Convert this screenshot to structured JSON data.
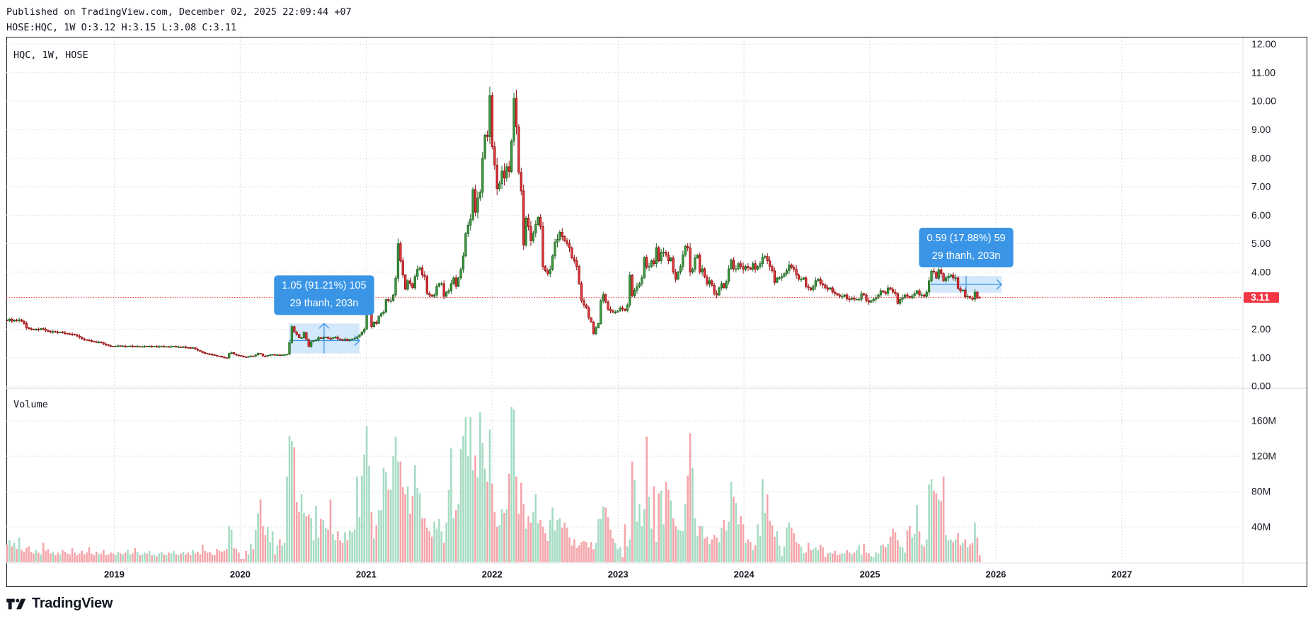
{
  "header": {
    "published": "Published on TradingView.com, December 02, 2025 22:09:44 +07",
    "ohlc": "HOSE:HQC, 1W O:3.12 H:3.15 L:3.08 C:3.11"
  },
  "legend": {
    "main": "HQC, 1W, HOSE",
    "volume": "Volume"
  },
  "footer": {
    "brand": "TradingView"
  },
  "colors": {
    "up": "#3d9a40",
    "up_border": "#1e5f20",
    "down": "#e0383e",
    "down_border": "#8c0a0a",
    "vol_up": "#a6dcc3",
    "vol_down": "#f5a5aa",
    "last_price": "#f23645",
    "measure": "#3a95e6",
    "measure_fill": "#cfe5fb",
    "grid": "#d1d4dc"
  },
  "chart_data": {
    "type": "candlestick",
    "title": "HQC, 1W, HOSE",
    "interval": "1W",
    "x_start_year": 2018.149,
    "bars_per_year": 52.18,
    "ylim": [
      0,
      12
    ],
    "grid": true,
    "price_ticks": [
      {
        "value": 12,
        "label": "12.00"
      },
      {
        "value": 11,
        "label": "11.00"
      },
      {
        "value": 10,
        "label": "10.00"
      },
      {
        "value": 9,
        "label": "9.00"
      },
      {
        "value": 8,
        "label": "8.00"
      },
      {
        "value": 7,
        "label": "7.00"
      },
      {
        "value": 6,
        "label": "6.00"
      },
      {
        "value": 5,
        "label": "5.00"
      },
      {
        "value": 4,
        "label": "4.00"
      },
      {
        "value": 2,
        "label": "2.00"
      },
      {
        "value": 1,
        "label": "1.00"
      },
      {
        "value": 0,
        "label": "0.00"
      }
    ],
    "volume_ticks": [
      {
        "value": 160,
        "label": "160M"
      },
      {
        "value": 120,
        "label": "120M"
      },
      {
        "value": 80,
        "label": "80M"
      },
      {
        "value": 40,
        "label": "40M"
      }
    ],
    "year_ticks": [
      {
        "value": 2019,
        "label": "2019"
      },
      {
        "value": 2020,
        "label": "2020"
      },
      {
        "value": 2021,
        "label": "2021"
      },
      {
        "value": 2022,
        "label": "2022"
      },
      {
        "value": 2023,
        "label": "2023"
      },
      {
        "value": 2024,
        "label": "2024"
      },
      {
        "value": 2025,
        "label": "2025"
      },
      {
        "value": 2026,
        "label": "2026"
      },
      {
        "value": 2027,
        "label": "2027"
      }
    ],
    "last_price": {
      "value": 3.11,
      "label": "3.11"
    },
    "last_bar": {
      "open": 3.12,
      "high": 3.15,
      "low": 3.08,
      "close": 3.11
    },
    "closes": [
      2.3,
      2.35,
      2.28,
      2.32,
      2.3,
      2.33,
      2.28,
      2.2,
      2.05,
      2.02,
      2.0,
      1.98,
      2.0,
      1.98,
      2.02,
      2.0,
      1.96,
      1.92,
      1.9,
      1.92,
      1.9,
      1.88,
      1.9,
      1.88,
      1.85,
      1.84,
      1.83,
      1.82,
      1.8,
      1.76,
      1.72,
      1.66,
      1.63,
      1.62,
      1.6,
      1.58,
      1.56,
      1.55,
      1.55,
      1.52,
      1.48,
      1.45,
      1.42,
      1.4,
      1.39,
      1.4,
      1.42,
      1.4,
      1.41,
      1.39,
      1.4,
      1.41,
      1.4,
      1.39,
      1.4,
      1.38,
      1.39,
      1.4,
      1.39,
      1.4,
      1.39,
      1.4,
      1.38,
      1.39,
      1.4,
      1.39,
      1.39,
      1.38,
      1.39,
      1.4,
      1.38,
      1.38,
      1.37,
      1.38,
      1.36,
      1.35,
      1.34,
      1.35,
      1.3,
      1.26,
      1.22,
      1.18,
      1.15,
      1.13,
      1.12,
      1.1,
      1.08,
      1.06,
      1.05,
      1.02,
      1.0,
      0.99,
      1.15,
      1.18,
      1.12,
      1.09,
      1.08,
      1.05,
      1.03,
      1.02,
      1.04,
      1.06,
      1.05,
      1.1,
      1.15,
      1.13,
      1.06,
      1.05,
      1.08,
      1.1,
      1.11,
      1.1,
      1.1,
      1.09,
      1.1,
      1.1,
      1.12,
      1.53,
      2.09,
      1.9,
      1.82,
      1.7,
      1.7,
      1.88,
      1.64,
      1.39,
      1.56,
      1.6,
      1.62,
      1.7,
      1.68,
      1.7,
      1.72,
      1.68,
      1.66,
      1.7,
      1.72,
      1.66,
      1.63,
      1.62,
      1.65,
      1.6,
      1.63,
      1.66,
      1.68,
      1.72,
      1.8,
      1.9,
      2.0,
      2.8,
      2.95,
      2.09,
      2.25,
      2.2,
      2.46,
      2.55,
      2.6,
      3.04,
      3.0,
      3.0,
      3.2,
      3.79,
      5.0,
      4.4,
      3.9,
      3.4,
      3.7,
      3.6,
      3.45,
      3.85,
      4.1,
      4.15,
      3.9,
      3.85,
      3.25,
      3.2,
      3.15,
      3.2,
      3.5,
      3.6,
      3.6,
      3.15,
      3.3,
      3.35,
      3.6,
      3.8,
      3.5,
      3.8,
      4.1,
      4.57,
      5.35,
      5.65,
      5.85,
      6.9,
      6.1,
      6.6,
      6.8,
      8.0,
      8.8,
      8.75,
      10.2,
      8.4,
      7.76,
      6.93,
      7.1,
      7.55,
      7.3,
      7.7,
      7.53,
      8.6,
      10.1,
      9.1,
      7.5,
      6.85,
      4.95,
      5.9,
      5.6,
      5.1,
      5.37,
      5.67,
      5.92,
      5.6,
      4.2,
      4.05,
      3.95,
      4.1,
      4.57,
      5.05,
      5.15,
      5.4,
      5.25,
      5.1,
      5.0,
      4.85,
      4.5,
      4.4,
      4.2,
      3.6,
      3.0,
      2.85,
      2.75,
      2.4,
      2.25,
      1.84,
      2.05,
      2.2,
      3.0,
      3.21,
      2.95,
      2.7,
      2.65,
      2.6,
      2.6,
      2.65,
      2.75,
      2.7,
      2.65,
      2.85,
      3.89,
      3.17,
      3.37,
      3.5,
      3.6,
      3.8,
      4.52,
      4.17,
      4.2,
      4.4,
      4.3,
      4.86,
      4.4,
      4.7,
      4.7,
      4.6,
      4.4,
      4.5,
      4.0,
      3.75,
      4.0,
      4.2,
      4.6,
      4.9,
      4.85,
      4.0,
      4.1,
      4.5,
      4.6,
      4.0,
      4.12,
      3.83,
      3.58,
      3.7,
      3.54,
      3.25,
      3.2,
      3.45,
      3.6,
      3.45,
      3.67,
      4.12,
      4.43,
      4.12,
      4.12,
      4.3,
      4.2,
      4.1,
      4.2,
      4.15,
      4.1,
      4.3,
      4.1,
      4.2,
      4.3,
      4.52,
      4.55,
      4.4,
      4.2,
      4.05,
      3.64,
      3.8,
      3.8,
      3.85,
      3.95,
      4.05,
      4.25,
      4.16,
      4.1,
      3.9,
      3.75,
      3.75,
      3.8,
      3.49,
      3.45,
      3.38,
      3.5,
      3.7,
      3.75,
      3.6,
      3.55,
      3.45,
      3.4,
      3.45,
      3.3,
      3.25,
      3.2,
      3.15,
      3.15,
      3.2,
      3.06,
      3.05,
      3.1,
      3.05,
      3.05,
      3.05,
      3.25,
      3.2,
      3.0,
      2.95,
      3.0,
      3.05,
      3.1,
      3.2,
      3.35,
      3.3,
      3.25,
      3.45,
      3.4,
      3.3,
      3.25,
      2.9,
      3.05,
      3.1,
      3.2,
      3.15,
      3.1,
      3.17,
      3.25,
      3.35,
      3.2,
      3.2,
      3.15,
      3.3,
      3.7,
      4.04,
      4.0,
      3.79,
      4.08,
      3.95,
      3.7,
      3.8,
      3.85,
      3.9,
      3.8,
      3.8,
      3.43,
      3.35,
      3.37,
      3.13,
      3.15,
      3.09,
      3.05,
      3.3,
      3.09,
      3.11
    ],
    "volume_unit": "M",
    "volumes": [
      20,
      25,
      18,
      22,
      15,
      28,
      14,
      12,
      16,
      18,
      12,
      10,
      14,
      11,
      9,
      22,
      13,
      15,
      10,
      12,
      8,
      11,
      9,
      14,
      12,
      10,
      9,
      16,
      11,
      8,
      10,
      13,
      9,
      11,
      17,
      10,
      8,
      12,
      9,
      10,
      14,
      8,
      9,
      11,
      10,
      8,
      12,
      10,
      9,
      11,
      14,
      9,
      10,
      16,
      12,
      8,
      9,
      11,
      10,
      13,
      8,
      9,
      7,
      10,
      12,
      9,
      8,
      11,
      10,
      13,
      9,
      8,
      10,
      12,
      9,
      11,
      8,
      14,
      10,
      12,
      9,
      20,
      13,
      11,
      12,
      9,
      8,
      15,
      13,
      12,
      13,
      15,
      41,
      37,
      16,
      15,
      11,
      4,
      4,
      13,
      9,
      21,
      15,
      37,
      55,
      71,
      41,
      31,
      40,
      23,
      35,
      9,
      19,
      26,
      19,
      22,
      97,
      143,
      137,
      130,
      68,
      57,
      77,
      56,
      52,
      54,
      50,
      25,
      64,
      28,
      49,
      48,
      39,
      37,
      71,
      32,
      25,
      35,
      25,
      22,
      34,
      25,
      36,
      34,
      37,
      97,
      51,
      98,
      122,
      154,
      109,
      57,
      27,
      42,
      59,
      59,
      107,
      102,
      82,
      82,
      120,
      142,
      114,
      114,
      85,
      77,
      86,
      55,
      75,
      110,
      84,
      78,
      50,
      50,
      39,
      35,
      29,
      46,
      38,
      49,
      35,
      22,
      45,
      82,
      129,
      50,
      59,
      66,
      128,
      143,
      164,
      120,
      164,
      104,
      121,
      96,
      170,
      135,
      106,
      91,
      150,
      89,
      57,
      40,
      42,
      60,
      56,
      60,
      100,
      176,
      173,
      97,
      55,
      90,
      66,
      38,
      52,
      45,
      57,
      77,
      44,
      48,
      40,
      33,
      24,
      48,
      62,
      36,
      48,
      50,
      39,
      45,
      39,
      28,
      19,
      26,
      16,
      19,
      23,
      24,
      23,
      17,
      23,
      15,
      22,
      49,
      49,
      63,
      62,
      51,
      37,
      27,
      22,
      15,
      17,
      6,
      43,
      18,
      26,
      114,
      93,
      46,
      66,
      41,
      60,
      142,
      74,
      38,
      86,
      23,
      78,
      81,
      43,
      91,
      82,
      70,
      50,
      41,
      37,
      36,
      35,
      66,
      98,
      146,
      107,
      50,
      30,
      41,
      41,
      27,
      29,
      21,
      26,
      31,
      28,
      23,
      39,
      48,
      36,
      46,
      91,
      74,
      67,
      43,
      52,
      43,
      22,
      26,
      23,
      14,
      19,
      43,
      30,
      94,
      56,
      77,
      47,
      42,
      29,
      35,
      19,
      7,
      18,
      39,
      45,
      39,
      33,
      23,
      21,
      18,
      10,
      11,
      22,
      14,
      15,
      17,
      14,
      20,
      17,
      6,
      10,
      11,
      10,
      13,
      8,
      9,
      10,
      10,
      14,
      11,
      9,
      11,
      14,
      19,
      9,
      21,
      11,
      10,
      7,
      6,
      11,
      10,
      19,
      20,
      17,
      21,
      29,
      38,
      34,
      25,
      18,
      17,
      11,
      36,
      41,
      28,
      32,
      65,
      35,
      20,
      18,
      26,
      88,
      94,
      81,
      78,
      71,
      69,
      97,
      31,
      25,
      26,
      23,
      26,
      33,
      19,
      22,
      26,
      17,
      20,
      22,
      45,
      28,
      8
    ],
    "measurements": [
      {
        "line1": "1.05 (91.21%) 105",
        "line2": "29 thanh, 203n",
        "from_bar": 117,
        "to_bar": 146,
        "price_low": 1.15,
        "price_high": 2.2,
        "mid_price": 1.6,
        "arrow": "up"
      },
      {
        "line1": "0.59 (17.88%) 59",
        "line2": "29 thanh, 203n",
        "from_bar": 383,
        "to_bar": 412,
        "price_low": 3.28,
        "price_high": 3.87,
        "mid_price": 3.57,
        "arrow": "none"
      }
    ]
  }
}
